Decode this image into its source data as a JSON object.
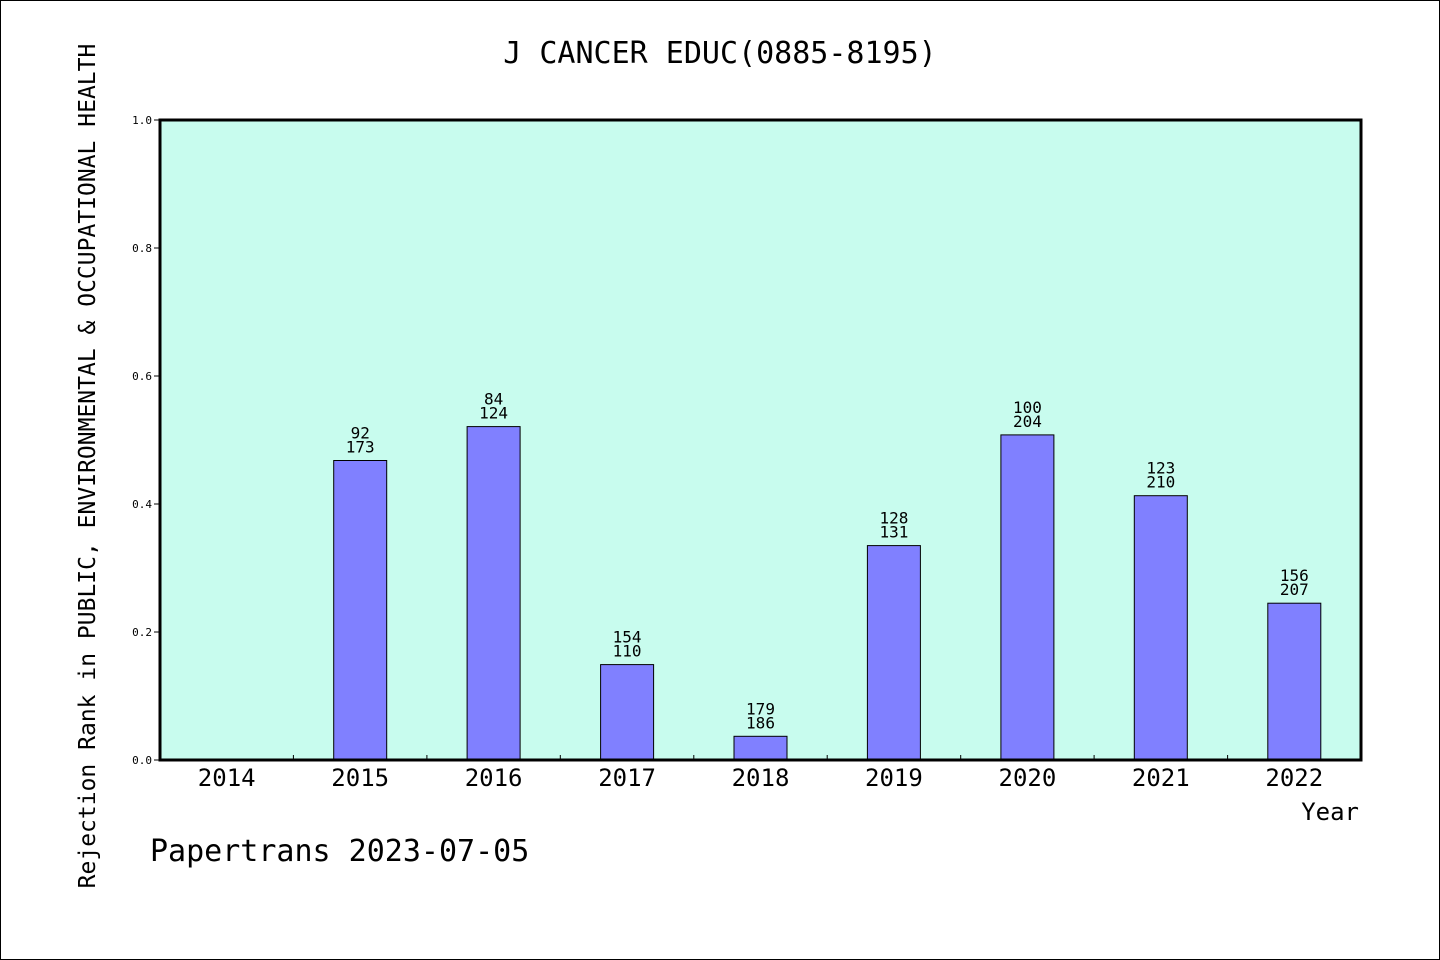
{
  "chart_data": {
    "type": "bar",
    "title": "J CANCER EDUC(0885-8195)",
    "ylabel": "Rejection Rank in PUBLIC, ENVIRONMENTAL & OCCUPATIONAL HEALTH",
    "xlabel": "Year",
    "categories": [
      "2014",
      "2015",
      "2016",
      "2017",
      "2018",
      "2019",
      "2020",
      "2021",
      "2022"
    ],
    "values": [
      null,
      0.468,
      0.521,
      0.149,
      0.037,
      0.335,
      0.508,
      0.413,
      0.245
    ],
    "label_top": [
      "",
      "92",
      "84",
      "154",
      "179",
      "128",
      "100",
      "123",
      "156"
    ],
    "label_bottom": [
      "",
      "173",
      "124",
      "110",
      "186",
      "131",
      "204",
      "210",
      "207"
    ],
    "ylim": [
      0,
      1.0
    ],
    "yticks": [
      "0.0",
      "0.2",
      "0.4",
      "0.6",
      "0.8",
      "1.0"
    ],
    "grid": false,
    "colors": {
      "plot_bg": "#c8fcee",
      "bar": "#8080ff",
      "bar_edge": "#000000"
    }
  },
  "footer": "Papertrans 2023-07-05"
}
